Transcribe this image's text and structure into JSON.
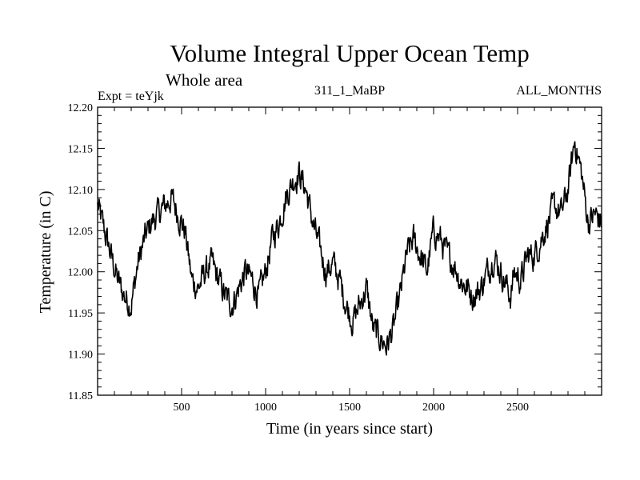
{
  "chart_data": {
    "type": "line",
    "title": "Volume Integral Upper Ocean Temp",
    "subtitle": "Whole area",
    "header_left": "Expt = teYjk",
    "header_center": "311_1_MaBP",
    "header_right": "ALL_MONTHS",
    "xlabel": "Time (in years since start)",
    "ylabel": "Temperature (in C)",
    "xlim": [
      0,
      3000
    ],
    "ylim": [
      11.85,
      12.2
    ],
    "xticks": [
      500,
      1000,
      1500,
      2000,
      2500
    ],
    "yticks": [
      11.85,
      11.9,
      11.95,
      12.0,
      12.05,
      12.1,
      12.15,
      12.2
    ],
    "ytick_labels": [
      "11.85",
      "11.90",
      "11.95",
      "12.00",
      "12.05",
      "12.10",
      "12.15",
      "12.20"
    ],
    "grid": false,
    "series": [
      {
        "name": "Volume Integral Upper Ocean Temp",
        "x": [
          0,
          40,
          80,
          120,
          160,
          200,
          240,
          280,
          320,
          360,
          400,
          440,
          480,
          520,
          560,
          600,
          640,
          680,
          720,
          760,
          800,
          840,
          880,
          920,
          960,
          1000,
          1040,
          1080,
          1120,
          1160,
          1200,
          1240,
          1280,
          1320,
          1360,
          1400,
          1440,
          1480,
          1520,
          1560,
          1600,
          1640,
          1680,
          1720,
          1760,
          1800,
          1840,
          1880,
          1920,
          1960,
          2000,
          2040,
          2080,
          2120,
          2160,
          2200,
          2240,
          2280,
          2320,
          2360,
          2400,
          2440,
          2460,
          2480,
          2520,
          2560,
          2600,
          2640,
          2680,
          2720,
          2760,
          2800,
          2840,
          2880,
          2920,
          2960,
          3000
        ],
        "values": [
          12.08,
          12.05,
          12.02,
          11.99,
          11.97,
          11.96,
          12.01,
          12.04,
          12.06,
          12.07,
          12.08,
          12.09,
          12.07,
          12.05,
          11.99,
          11.98,
          12.0,
          12.01,
          11.99,
          11.97,
          11.96,
          11.98,
          12.0,
          11.99,
          11.97,
          12.0,
          12.04,
          12.06,
          12.09,
          12.11,
          12.12,
          12.1,
          12.06,
          12.03,
          12.0,
          12.01,
          11.99,
          11.96,
          11.94,
          11.96,
          11.98,
          11.93,
          11.92,
          11.91,
          11.93,
          11.97,
          12.02,
          12.04,
          12.02,
          12.0,
          12.05,
          12.04,
          12.02,
          12.01,
          11.99,
          11.98,
          11.97,
          11.98,
          12.0,
          12.02,
          12.0,
          11.98,
          11.97,
          12.0,
          11.99,
          12.02,
          12.02,
          12.04,
          12.06,
          12.08,
          12.07,
          12.1,
          12.16,
          12.12,
          12.06,
          12.07,
          12.06
        ]
      }
    ]
  }
}
